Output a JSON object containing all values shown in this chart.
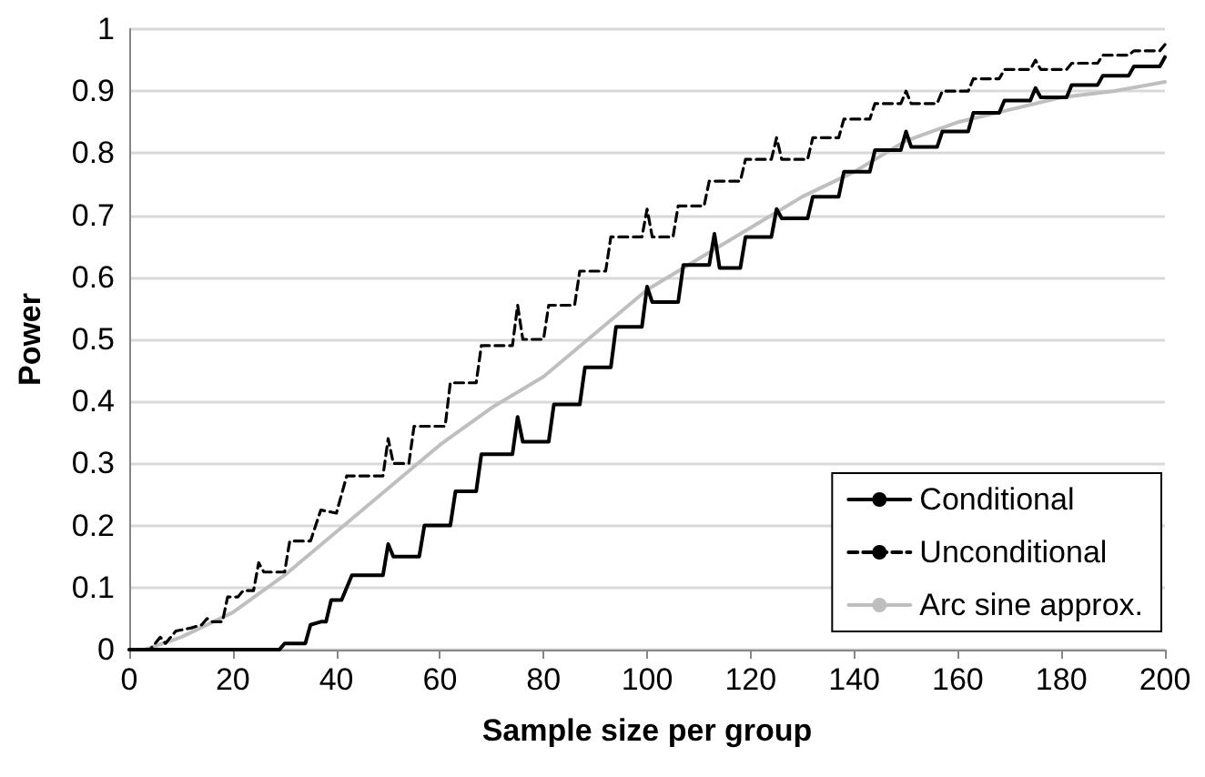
{
  "chart_data": {
    "type": "line",
    "xlabel": "Sample size per group",
    "ylabel": "Power",
    "xlim": [
      0,
      200
    ],
    "xticks": [
      0,
      20,
      40,
      60,
      80,
      100,
      120,
      140,
      160,
      180,
      200
    ],
    "ylim": [
      0,
      1
    ],
    "yticks": [
      0,
      0.1,
      0.2,
      0.3,
      0.4,
      0.5,
      0.6,
      0.7,
      0.8,
      0.9,
      1
    ],
    "grid": "y",
    "legend": "bottom right",
    "marker": "none",
    "series": [
      {
        "name": "Conditional",
        "color": "#000000",
        "line_style": "solid",
        "x": [
          0,
          29,
          30,
          34,
          35,
          37,
          38,
          39,
          41,
          43,
          49,
          50,
          51,
          56,
          57,
          62,
          63,
          67,
          68,
          74,
          75,
          76,
          81,
          82,
          87,
          88,
          93,
          94,
          99,
          100,
          101,
          106,
          107,
          112,
          113,
          114,
          118,
          119,
          124,
          125,
          126,
          131,
          132,
          137,
          138,
          143,
          144,
          149,
          150,
          151,
          156,
          157,
          162,
          163,
          168,
          169,
          174,
          175,
          176,
          181,
          182,
          187,
          188,
          193,
          194,
          199,
          200
        ],
        "values": [
          0,
          0,
          0.01,
          0.01,
          0.04,
          0.045,
          0.045,
          0.08,
          0.08,
          0.12,
          0.12,
          0.17,
          0.15,
          0.15,
          0.2,
          0.2,
          0.255,
          0.255,
          0.315,
          0.315,
          0.375,
          0.335,
          0.335,
          0.395,
          0.395,
          0.455,
          0.455,
          0.52,
          0.52,
          0.585,
          0.56,
          0.56,
          0.62,
          0.62,
          0.67,
          0.615,
          0.615,
          0.665,
          0.665,
          0.71,
          0.695,
          0.695,
          0.73,
          0.73,
          0.77,
          0.77,
          0.805,
          0.805,
          0.835,
          0.81,
          0.81,
          0.835,
          0.835,
          0.865,
          0.865,
          0.885,
          0.885,
          0.905,
          0.89,
          0.89,
          0.91,
          0.91,
          0.925,
          0.925,
          0.94,
          0.94,
          0.955
        ]
      },
      {
        "name": "Unconditional",
        "color": "#000000",
        "line_style": "dashed",
        "x": [
          0,
          4,
          6,
          7,
          9,
          12,
          14,
          15,
          16,
          18,
          19,
          21,
          22,
          24,
          25,
          26,
          30,
          31,
          35,
          37,
          40,
          42,
          49,
          50,
          51,
          54,
          55,
          61,
          62,
          67,
          68,
          74,
          75,
          76,
          80,
          81,
          86,
          87,
          92,
          93,
          99,
          100,
          101,
          105,
          106,
          111,
          112,
          118,
          119,
          124,
          125,
          126,
          131,
          132,
          137,
          138,
          143,
          144,
          149,
          150,
          151,
          156,
          157,
          162,
          163,
          168,
          169,
          174,
          175,
          176,
          181,
          182,
          187,
          188,
          193,
          194,
          199,
          200
        ],
        "values": [
          0,
          0,
          0.02,
          0.01,
          0.03,
          0.035,
          0.04,
          0.05,
          0.045,
          0.045,
          0.085,
          0.085,
          0.095,
          0.095,
          0.14,
          0.125,
          0.125,
          0.175,
          0.175,
          0.225,
          0.22,
          0.28,
          0.28,
          0.34,
          0.3,
          0.3,
          0.36,
          0.36,
          0.43,
          0.43,
          0.49,
          0.49,
          0.555,
          0.5,
          0.5,
          0.555,
          0.555,
          0.61,
          0.61,
          0.665,
          0.665,
          0.71,
          0.665,
          0.665,
          0.715,
          0.715,
          0.755,
          0.755,
          0.79,
          0.79,
          0.825,
          0.79,
          0.79,
          0.825,
          0.825,
          0.855,
          0.855,
          0.88,
          0.88,
          0.9,
          0.88,
          0.88,
          0.9,
          0.9,
          0.92,
          0.92,
          0.935,
          0.935,
          0.95,
          0.935,
          0.935,
          0.945,
          0.945,
          0.958,
          0.958,
          0.965,
          0.965,
          0.975
        ]
      },
      {
        "name": "Arc sine approx.",
        "color": "#bfbfbf",
        "line_style": "solid",
        "x": [
          0,
          3,
          10,
          20,
          30,
          40,
          50,
          60,
          70,
          80,
          90,
          100,
          110,
          120,
          130,
          140,
          150,
          160,
          170,
          180,
          190,
          200
        ],
        "values": [
          0,
          0,
          0.02,
          0.06,
          0.12,
          0.19,
          0.26,
          0.33,
          0.39,
          0.44,
          0.51,
          0.58,
          0.63,
          0.68,
          0.73,
          0.77,
          0.82,
          0.85,
          0.87,
          0.89,
          0.9,
          0.915
        ]
      }
    ]
  }
}
